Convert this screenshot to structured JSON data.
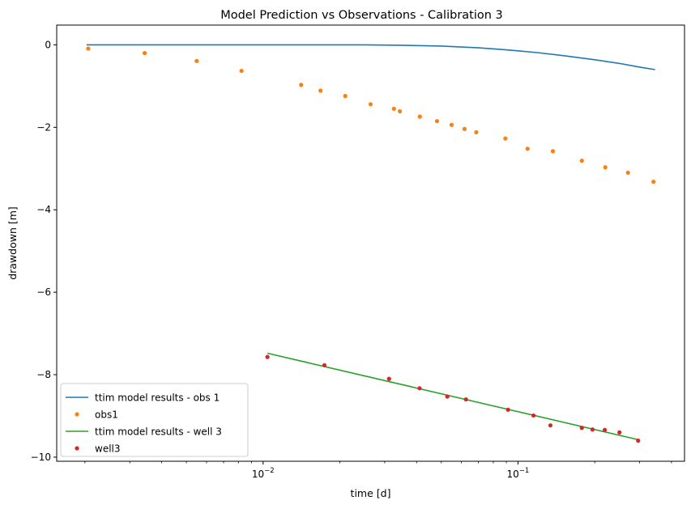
{
  "chart_data": {
    "type": "line",
    "title": "Model Prediction vs Observations - Calibration 3",
    "xlabel": "time [d]",
    "ylabel": "drawdown [m]",
    "xscale": "log",
    "xlim": [
      0.00155,
      0.45
    ],
    "ylim": [
      -10.1,
      0.48
    ],
    "grid": false,
    "legend_position": "lower-left",
    "y_ticks": [
      {
        "value": 0,
        "label": "0"
      },
      {
        "value": -2,
        "label": "−2"
      },
      {
        "value": -4,
        "label": "−4"
      },
      {
        "value": -6,
        "label": "−6"
      },
      {
        "value": -8,
        "label": "−8"
      },
      {
        "value": -10,
        "label": "−10"
      }
    ],
    "x_ticks": [
      {
        "value": 0.01,
        "base": "10",
        "exp": "−2"
      },
      {
        "value": 0.1,
        "base": "10",
        "exp": "−1"
      }
    ],
    "series": [
      {
        "name": "ttim model results - obs 1",
        "kind": "line",
        "color": "#1f77b4",
        "x": [
          0.00203,
          0.003,
          0.005,
          0.008,
          0.012,
          0.018,
          0.025,
          0.035,
          0.05,
          0.07,
          0.09,
          0.12,
          0.15,
          0.2,
          0.25,
          0.3,
          0.345
        ],
        "y": [
          0,
          0,
          0,
          0,
          0,
          0,
          0,
          -0.01,
          -0.03,
          -0.07,
          -0.12,
          -0.19,
          -0.26,
          -0.36,
          -0.45,
          -0.54,
          -0.6
        ]
      },
      {
        "name": "obs1",
        "kind": "scatter",
        "color": "#ff7f0e",
        "x": [
          0.00206,
          0.00343,
          0.00549,
          0.00823,
          0.0141,
          0.0168,
          0.021,
          0.0264,
          0.0326,
          0.0344,
          0.0412,
          0.0481,
          0.0549,
          0.0617,
          0.0686,
          0.0892,
          0.109,
          0.137,
          0.178,
          0.22,
          0.27,
          0.34
        ],
        "y": [
          -0.09,
          -0.2,
          -0.39,
          -0.63,
          -0.97,
          -1.11,
          -1.24,
          -1.44,
          -1.55,
          -1.61,
          -1.74,
          -1.85,
          -1.94,
          -2.04,
          -2.12,
          -2.27,
          -2.52,
          -2.58,
          -2.81,
          -2.97,
          -3.1,
          -3.32
        ]
      },
      {
        "name": "ttim model results - well 3",
        "kind": "line",
        "color": "#2ca02c",
        "x": [
          0.0104,
          0.298
        ],
        "y": [
          -7.48,
          -9.58
        ]
      },
      {
        "name": "well3",
        "kind": "scatter",
        "color": "#d62728",
        "x": [
          0.0104,
          0.0174,
          0.0312,
          0.0411,
          0.0528,
          0.0625,
          0.0914,
          0.115,
          0.134,
          0.178,
          0.196,
          0.219,
          0.25,
          0.296
        ],
        "y": [
          -7.57,
          -7.77,
          -8.1,
          -8.33,
          -8.53,
          -8.6,
          -8.85,
          -8.99,
          -9.23,
          -9.29,
          -9.33,
          -9.34,
          -9.4,
          -9.6
        ]
      }
    ]
  }
}
